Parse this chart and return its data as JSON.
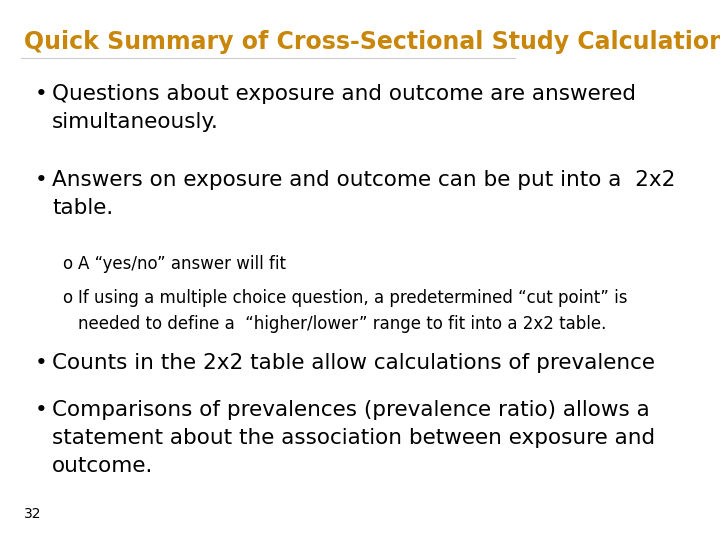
{
  "title": "Quick Summary of Cross-Sectional Study Calculations",
  "title_color": "#C8860A",
  "title_fontsize": 17,
  "background_color": "#FFFFFF",
  "bullet_color": "#000000",
  "bullet_fontsize": 15.5,
  "sub_bullet_fontsize": 12,
  "page_number": "32",
  "bullets": [
    {
      "text": "Questions about exposure and outcome are answered\nsimultaneously.",
      "level": 0
    },
    {
      "text": "Answers on exposure and outcome can be put into a  2x2\ntable.",
      "level": 0
    },
    {
      "text": "A “yes/no” answer will fit",
      "level": 1
    },
    {
      "text": "If using a multiple choice question, a predetermined “cut point” is\nneeded to define a  “higher/lower” range to fit into a 2x2 table.",
      "level": 1
    },
    {
      "text": "Counts in the 2x2 table allow calculations of prevalence",
      "level": 0
    },
    {
      "text": "Comparisons of prevalences (prevalence ratio) allows a\nstatement about the association between exposure and\noutcome.",
      "level": 0
    }
  ]
}
